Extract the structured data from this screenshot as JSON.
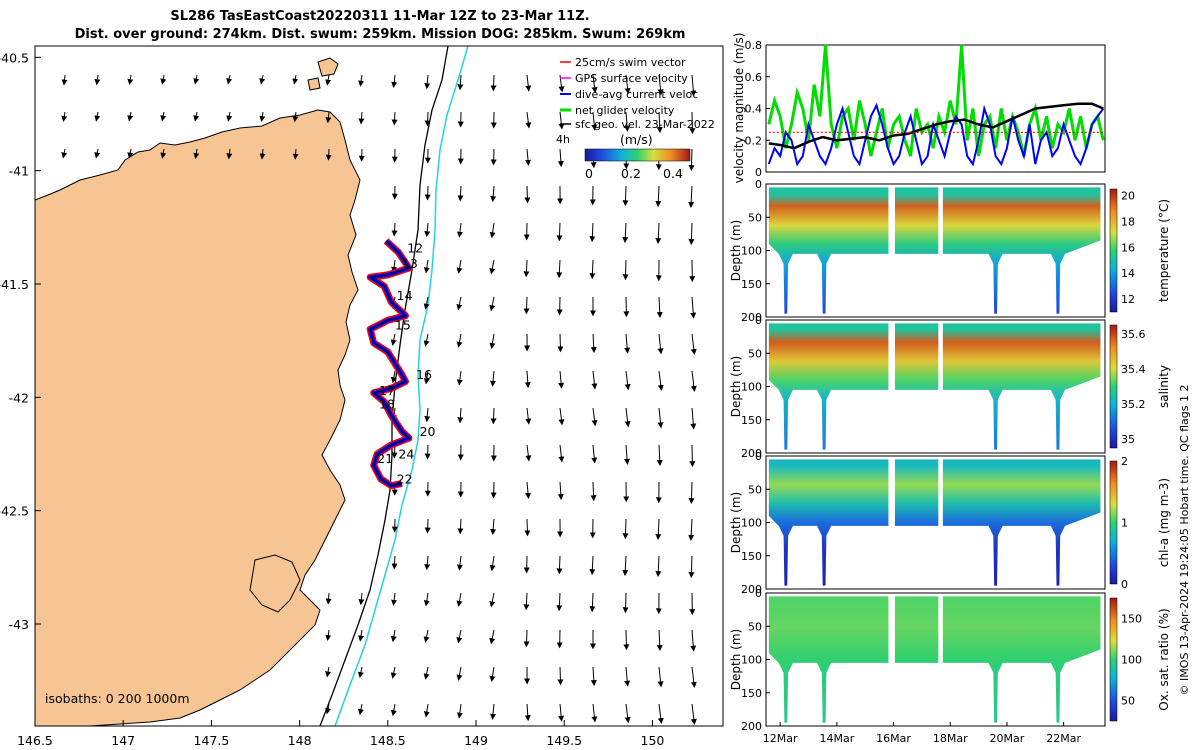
{
  "figure": {
    "title_line1": "SL286 TasEastCoast20220311 11-Mar 12Z to 23-Mar 11Z.",
    "title_line2": "Dist. over ground: 274km. Dist. swum: 259km. Mission DOG: 285km. Swum: 269km",
    "credit": "© IMOS 13-Apr-2024 19:24:05 Hobart time. QC flags 1  2"
  },
  "colors": {
    "land": "#F7C594",
    "ocean": "#FFFFFF",
    "isobath_200": "#000000",
    "isobath_1000": "#22D3E6",
    "swim_vector": "#FF0000",
    "gps_velocity": "#FF00FF",
    "dive_avg_current": "#0000FF",
    "net_glider_velocity": "#00DD00",
    "sfc_geo_vel": "#000000"
  },
  "chart_data": [
    {
      "type": "map",
      "name": "glider track map",
      "xlim": [
        146.5,
        150.4
      ],
      "ylim": [
        -43.45,
        -40.45
      ],
      "x_ticks": [
        146.5,
        147,
        147.5,
        148,
        148.5,
        149,
        149.5,
        150
      ],
      "x_tick_labels": [
        "146.5",
        "147",
        "147.5",
        "148",
        "148.5",
        "149",
        "149.5",
        "150"
      ],
      "y_ticks": [
        -40.5,
        -41,
        -41.5,
        -42,
        -42.5,
        -43
      ],
      "y_tick_labels": [
        "-40.5",
        "-41",
        "-41.5",
        "-42",
        "-42.5",
        "-43"
      ],
      "legend": [
        "25cm/s swim vector",
        "GPS surface velocity",
        "dive-avg current veloc",
        "net glider velocity",
        "sfc geo. vel. 23-Mar-2022"
      ],
      "colorbar": {
        "label": "(m/s)",
        "side_label": "4h",
        "ticks": [
          0,
          0.2,
          0.4
        ],
        "tick_labels": [
          "0",
          "0.2",
          "0.4"
        ],
        "range": [
          0,
          0.5
        ]
      },
      "isobath_label": "isobaths: 0  200  1000m",
      "day_labels": [
        {
          "label": "12",
          "lon": 148.61,
          "lat": -41.36
        },
        {
          "label": "13",
          "lon": 148.58,
          "lat": -41.43
        },
        {
          "label": "14",
          "lon": 148.55,
          "lat": -41.57
        },
        {
          "label": "15",
          "lon": 148.54,
          "lat": -41.7
        },
        {
          "label": "16",
          "lon": 148.66,
          "lat": -41.92
        },
        {
          "label": "17",
          "lon": 148.45,
          "lat": -41.99
        },
        {
          "label": "18",
          "lon": 148.45,
          "lat": -42.05
        },
        {
          "label": "20",
          "lon": 148.68,
          "lat": -42.17
        },
        {
          "label": "21",
          "lon": 148.44,
          "lat": -42.29
        },
        {
          "label": "24",
          "lon": 148.56,
          "lat": -42.27
        },
        {
          "label": "22",
          "lon": 148.55,
          "lat": -42.38
        }
      ],
      "track": [
        [
          148.49,
          -41.31
        ],
        [
          148.56,
          -41.36
        ],
        [
          148.62,
          -41.43
        ],
        [
          148.5,
          -41.46
        ],
        [
          148.4,
          -41.47
        ],
        [
          148.48,
          -41.51
        ],
        [
          148.52,
          -41.58
        ],
        [
          148.6,
          -41.64
        ],
        [
          148.5,
          -41.66
        ],
        [
          148.4,
          -41.7
        ],
        [
          148.42,
          -41.76
        ],
        [
          148.5,
          -41.8
        ],
        [
          148.58,
          -41.9
        ],
        [
          148.6,
          -41.93
        ],
        [
          148.52,
          -41.96
        ],
        [
          148.42,
          -41.98
        ],
        [
          148.48,
          -42.02
        ],
        [
          148.52,
          -42.08
        ],
        [
          148.58,
          -42.15
        ],
        [
          148.62,
          -42.18
        ],
        [
          148.52,
          -42.21
        ],
        [
          148.44,
          -42.25
        ],
        [
          148.42,
          -42.3
        ],
        [
          148.46,
          -42.36
        ],
        [
          148.52,
          -42.39
        ],
        [
          148.58,
          -42.38
        ]
      ]
    },
    {
      "type": "line",
      "name": "velocity magnitude timeseries",
      "ylabel": "velocity magnitude (m/s)",
      "ylim": [
        0,
        0.8
      ],
      "y_ticks": [
        0,
        0.2,
        0.4,
        0.6,
        0.8
      ],
      "y_tick_labels": [
        "0",
        "0.2",
        "0.4",
        "0.6",
        "0.8"
      ],
      "xlim": [
        11.5,
        23.46
      ],
      "series": [
        {
          "name": "net glider velocity",
          "x": [
            11.6,
            11.8,
            12.0,
            12.2,
            12.4,
            12.6,
            12.8,
            13.0,
            13.2,
            13.4,
            13.6,
            13.8,
            14.0,
            14.2,
            14.4,
            14.6,
            14.8,
            15.0,
            15.2,
            15.4,
            15.6,
            15.8,
            16.0,
            16.2,
            16.4,
            16.6,
            16.8,
            17.0,
            17.2,
            17.4,
            17.6,
            17.8,
            18.0,
            18.2,
            18.4,
            18.6,
            18.8,
            19.0,
            19.2,
            19.4,
            19.6,
            19.8,
            20.0,
            20.2,
            20.4,
            20.6,
            20.8,
            21.0,
            21.2,
            21.4,
            21.6,
            21.8,
            22.0,
            22.2,
            22.4,
            22.6,
            22.8,
            23.0,
            23.2,
            23.4
          ],
          "values": [
            0.3,
            0.45,
            0.35,
            0.15,
            0.3,
            0.5,
            0.4,
            0.2,
            0.55,
            0.35,
            0.8,
            0.3,
            0.15,
            0.35,
            0.4,
            0.2,
            0.45,
            0.3,
            0.1,
            0.25,
            0.4,
            0.15,
            0.3,
            0.35,
            0.2,
            0.1,
            0.4,
            0.25,
            0.3,
            0.15,
            0.35,
            0.25,
            0.45,
            0.3,
            0.8,
            0.2,
            0.4,
            0.1,
            0.3,
            0.35,
            0.15,
            0.4,
            0.2,
            0.35,
            0.25,
            0.1,
            0.3,
            0.4,
            0.2,
            0.35,
            0.15,
            0.3,
            0.25,
            0.4,
            0.2,
            0.35,
            0.15,
            0.3,
            0.35,
            0.2
          ]
        },
        {
          "name": "dive-avg current veloc",
          "x": [
            11.6,
            11.8,
            12.0,
            12.2,
            12.4,
            12.6,
            12.8,
            13.0,
            13.2,
            13.4,
            13.6,
            13.8,
            14.0,
            14.2,
            14.4,
            14.6,
            14.8,
            15.0,
            15.2,
            15.4,
            15.6,
            15.8,
            16.0,
            16.2,
            16.4,
            16.6,
            16.8,
            17.0,
            17.2,
            17.4,
            17.6,
            17.8,
            18.0,
            18.2,
            18.4,
            18.6,
            18.8,
            19.0,
            19.2,
            19.4,
            19.6,
            19.8,
            20.0,
            20.2,
            20.4,
            20.6,
            20.8,
            21.0,
            21.2,
            21.4,
            21.6,
            21.8,
            22.0,
            22.2,
            22.4,
            22.6,
            22.8,
            23.0,
            23.2,
            23.4
          ],
          "values": [
            0.05,
            0.15,
            0.1,
            0.25,
            0.2,
            0.05,
            0.1,
            0.3,
            0.2,
            0.1,
            0.05,
            0.15,
            0.3,
            0.4,
            0.25,
            0.1,
            0.05,
            0.2,
            0.35,
            0.42,
            0.3,
            0.15,
            0.05,
            0.1,
            0.25,
            0.35,
            0.2,
            0.05,
            0.1,
            0.3,
            0.2,
            0.1,
            0.25,
            0.35,
            0.3,
            0.1,
            0.05,
            0.2,
            0.4,
            0.3,
            0.1,
            0.05,
            0.15,
            0.35,
            0.2,
            0.1,
            0.3,
            0.05,
            0.2,
            0.25,
            0.1,
            0.15,
            0.3,
            0.2,
            0.1,
            0.05,
            0.15,
            0.3,
            0.35,
            0.4
          ]
        },
        {
          "name": "sfc geo. vel.",
          "x": [
            11.6,
            12.0,
            12.5,
            13.0,
            13.5,
            14.0,
            14.5,
            15.0,
            15.5,
            16.0,
            16.5,
            17.0,
            17.5,
            18.0,
            18.5,
            19.0,
            19.5,
            20.0,
            20.5,
            21.0,
            21.5,
            22.0,
            22.5,
            23.0,
            23.4
          ],
          "values": [
            0.18,
            0.17,
            0.15,
            0.19,
            0.22,
            0.2,
            0.21,
            0.22,
            0.2,
            0.23,
            0.24,
            0.27,
            0.3,
            0.32,
            0.33,
            0.3,
            0.28,
            0.32,
            0.36,
            0.4,
            0.41,
            0.42,
            0.43,
            0.43,
            0.4
          ]
        },
        {
          "name": "swim vector",
          "x": [
            11.6,
            23.4
          ],
          "values": [
            0.25,
            0.25
          ]
        }
      ]
    },
    {
      "type": "heatmap",
      "name": "temperature section",
      "ylabel": "Depth (m)",
      "colorbar_label": "temperature (°C)",
      "ylim": [
        200,
        0
      ],
      "y_ticks": [
        0,
        50,
        100,
        150,
        200
      ],
      "y_tick_labels": [
        "0",
        "50",
        "100",
        "150",
        "200"
      ],
      "clim": [
        11,
        20.5
      ],
      "colorbar_ticks": [
        12,
        14,
        16,
        18,
        20
      ],
      "colorbar_tick_labels": [
        "12",
        "14",
        "16",
        "18",
        "20"
      ],
      "layers": [
        [
          12,
          15
        ],
        [
          30,
          19.5
        ],
        [
          60,
          17.5
        ],
        [
          90,
          15.5
        ],
        [
          120,
          14
        ],
        [
          200,
          12.5
        ]
      ]
    },
    {
      "type": "heatmap",
      "name": "salinity section",
      "ylabel": "Depth (m)",
      "colorbar_label": "salinity",
      "ylim": [
        200,
        0
      ],
      "y_ticks": [
        0,
        50,
        100,
        150,
        200
      ],
      "y_tick_labels": [
        "0",
        "50",
        "100",
        "150",
        "200"
      ],
      "clim": [
        34.95,
        35.65
      ],
      "colorbar_ticks": [
        35,
        35.2,
        35.4,
        35.6
      ],
      "colorbar_tick_labels": [
        "35",
        "35.2",
        "35.4",
        "35.6"
      ],
      "layers": [
        [
          10,
          35.25
        ],
        [
          30,
          35.58
        ],
        [
          60,
          35.45
        ],
        [
          90,
          35.32
        ],
        [
          120,
          35.2
        ],
        [
          200,
          35.12
        ]
      ]
    },
    {
      "type": "heatmap",
      "name": "chlorophyll section",
      "ylabel": "Depth (m)",
      "colorbar_label": "chl-a (mg m-3)",
      "ylim": [
        200,
        0
      ],
      "y_ticks": [
        0,
        50,
        100,
        150,
        200
      ],
      "y_tick_labels": [
        "0",
        "50",
        "100",
        "150",
        "200"
      ],
      "clim": [
        0,
        2
      ],
      "colorbar_ticks": [
        0,
        1,
        2
      ],
      "colorbar_tick_labels": [
        "0",
        "1",
        "2"
      ],
      "layers": [
        [
          10,
          0.75
        ],
        [
          40,
          1.2
        ],
        [
          70,
          0.8
        ],
        [
          100,
          0.45
        ],
        [
          140,
          0.2
        ],
        [
          200,
          0.08
        ]
      ]
    },
    {
      "type": "heatmap",
      "name": "oxygen saturation section",
      "ylabel": "Depth (m)",
      "colorbar_label": "Ox. sat. ratio (%)",
      "ylim": [
        200,
        0
      ],
      "y_ticks": [
        0,
        50,
        100,
        150,
        200
      ],
      "y_tick_labels": [
        "0",
        "50",
        "100",
        "150",
        "200"
      ],
      "clim": [
        25,
        175
      ],
      "colorbar_ticks": [
        50,
        100,
        150
      ],
      "colorbar_tick_labels": [
        "50",
        "100",
        "150"
      ],
      "layers": [
        [
          10,
          105
        ],
        [
          50,
          108
        ],
        [
          100,
          100
        ],
        [
          150,
          95
        ],
        [
          200,
          92
        ]
      ]
    }
  ],
  "time_axis": {
    "ticks": [
      12,
      14,
      16,
      18,
      20,
      22
    ],
    "tick_labels": [
      "12Mar",
      "14Mar",
      "16Mar",
      "18Mar",
      "20Mar",
      "22Mar"
    ],
    "xlim": [
      11.5,
      23.46
    ],
    "data_gaps": [
      [
        15.82,
        16.05
      ],
      [
        17.58,
        17.74
      ]
    ],
    "dive_profiles": [
      [
        12.2,
        195
      ],
      [
        13.55,
        195
      ],
      [
        19.6,
        195
      ],
      [
        21.8,
        195
      ]
    ]
  }
}
